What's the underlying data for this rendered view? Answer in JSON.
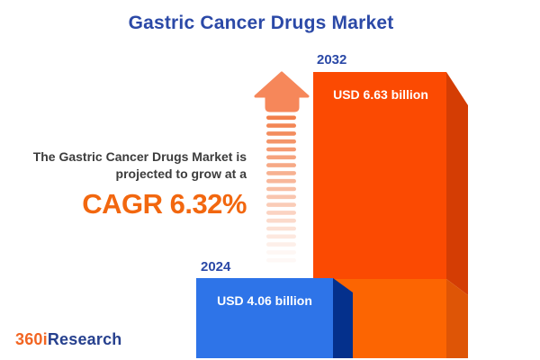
{
  "header": {
    "title": "Gastric Cancer Drugs Market"
  },
  "annotation": {
    "line1": "The Gastric Cancer Drugs Market is",
    "line2": "projected to grow at a",
    "cagr": "CAGR 6.32%"
  },
  "bars": {
    "y2024": {
      "year": "2024",
      "value": "USD 4.06 billion"
    },
    "y2032": {
      "year": "2032",
      "value": "USD 6.63 billion"
    }
  },
  "logo": {
    "orange_part": "360i",
    "blue_part": "Research"
  },
  "icons": {
    "growth_arrow": "up-arrow-striped-fading"
  },
  "colors": {
    "title_blue": "#2B49A7",
    "year_blue": "#2B49A7",
    "annotation_dark": "#3C3C3C",
    "cagr_orange": "#F2670F",
    "bar2032_front_top": "#FB4A02",
    "bar2032_front_bottom": "#FC6502",
    "bar2032_side_top": "#D43D04",
    "bar2032_side_bottom": "#DE5506",
    "bar2024_front": "#2E74E8",
    "bar2024_side": "#04308C",
    "value_text": "#FFFFFF",
    "arrow_head": "#F6875A",
    "arrow_stripe": "#F27F4B",
    "logo_orange": "#F26522",
    "logo_blue": "#26408E",
    "background": "#FFFFFF"
  },
  "chart_data": {
    "type": "bar",
    "title": "Gastric Cancer Drugs Market",
    "categories": [
      "2024",
      "2032"
    ],
    "values": [
      4.06,
      6.63
    ],
    "unit": "USD billion",
    "value_labels": [
      "USD 4.06 billion",
      "USD 6.63 billion"
    ],
    "cagr_percent": 6.32,
    "annotation": "The Gastric Cancer Drugs Market is projected to grow at a CAGR 6.32%",
    "series_colors": [
      "#2E74E8",
      "#FB4A02"
    ],
    "style": "3d-isometric-bars",
    "legend": false,
    "axes": false
  }
}
